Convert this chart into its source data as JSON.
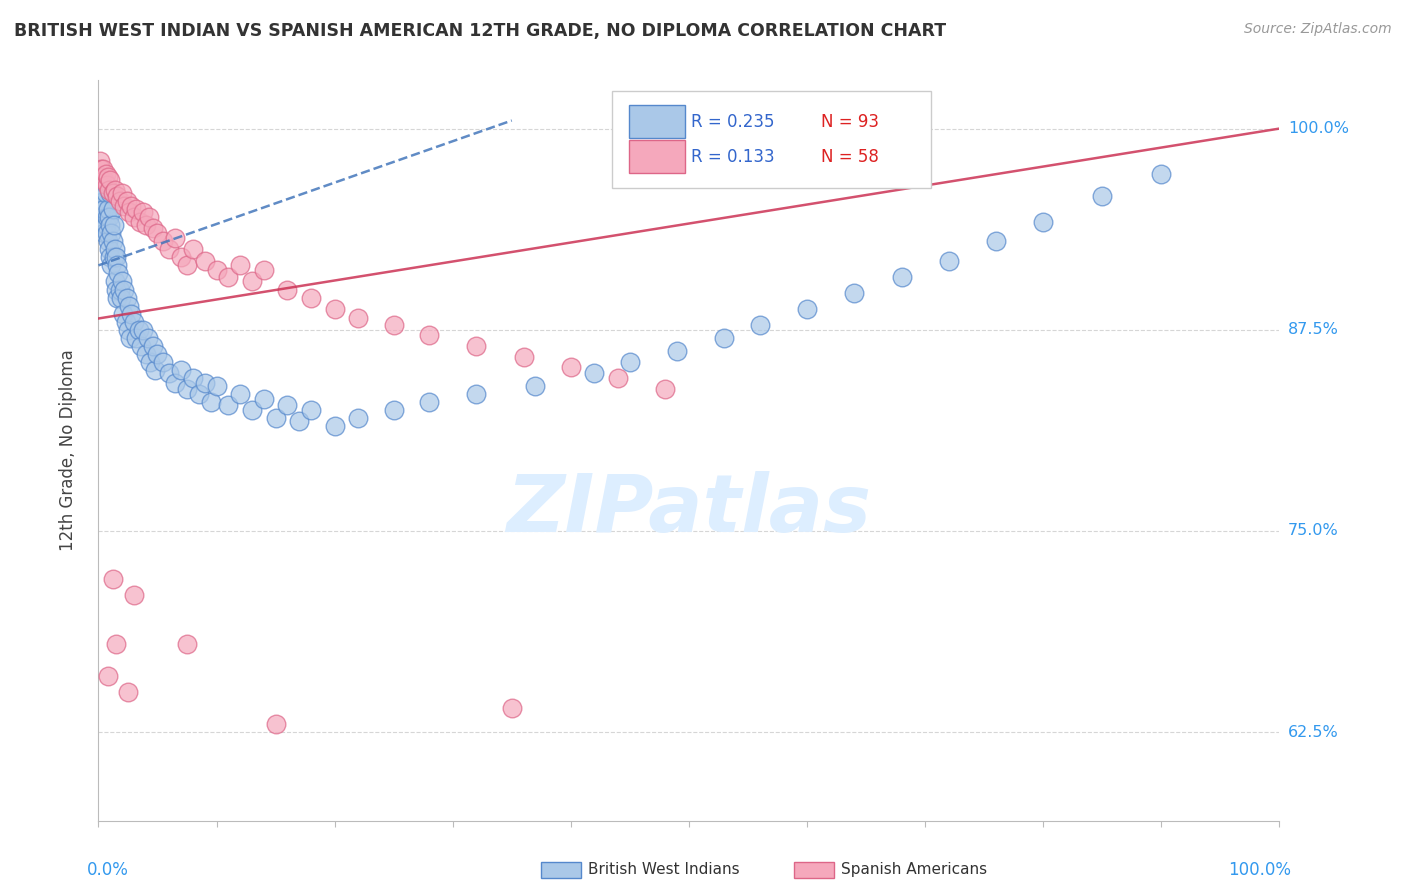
{
  "title": "BRITISH WEST INDIAN VS SPANISH AMERICAN 12TH GRADE, NO DIPLOMA CORRELATION CHART",
  "source": "Source: ZipAtlas.com",
  "ylabel": "12th Grade, No Diploma",
  "yticks_labels": [
    "100.0%",
    "87.5%",
    "75.0%",
    "62.5%"
  ],
  "ytick_vals": [
    1.0,
    0.875,
    0.75,
    0.625
  ],
  "xlim": [
    0.0,
    1.0
  ],
  "ylim": [
    0.57,
    1.03
  ],
  "xtick_positions": [
    0.0,
    0.1,
    0.2,
    0.3,
    0.4,
    0.5,
    0.6,
    0.7,
    0.8,
    0.9,
    1.0
  ],
  "r_bwi": 0.235,
  "n_bwi": 93,
  "r_spa": 0.133,
  "n_spa": 58,
  "bwi_color": "#aac8e8",
  "spa_color": "#f5a8bc",
  "bwi_edge": "#5588cc",
  "spa_edge": "#dd6688",
  "trend_bwi_color": "#4477bb",
  "trend_spa_color": "#cc3355",
  "title_color": "#333333",
  "source_color": "#999999",
  "legend_r_color": "#3366cc",
  "legend_n_color": "#dd2222",
  "watermark_color": "#ddeeff",
  "grid_color": "#cccccc",
  "bwi_points_x": [
    0.001,
    0.002,
    0.002,
    0.003,
    0.003,
    0.004,
    0.004,
    0.005,
    0.005,
    0.005,
    0.006,
    0.006,
    0.007,
    0.007,
    0.008,
    0.008,
    0.009,
    0.009,
    0.01,
    0.01,
    0.01,
    0.011,
    0.011,
    0.012,
    0.012,
    0.013,
    0.013,
    0.014,
    0.014,
    0.015,
    0.015,
    0.016,
    0.016,
    0.017,
    0.018,
    0.019,
    0.02,
    0.021,
    0.022,
    0.023,
    0.024,
    0.025,
    0.026,
    0.027,
    0.028,
    0.03,
    0.032,
    0.034,
    0.036,
    0.038,
    0.04,
    0.042,
    0.044,
    0.046,
    0.048,
    0.05,
    0.055,
    0.06,
    0.065,
    0.07,
    0.075,
    0.08,
    0.085,
    0.09,
    0.095,
    0.1,
    0.11,
    0.12,
    0.13,
    0.14,
    0.15,
    0.16,
    0.17,
    0.18,
    0.2,
    0.22,
    0.25,
    0.28,
    0.32,
    0.37,
    0.42,
    0.45,
    0.49,
    0.53,
    0.56,
    0.6,
    0.64,
    0.68,
    0.72,
    0.76,
    0.8,
    0.85,
    0.9
  ],
  "bwi_points_y": [
    0.96,
    0.97,
    0.95,
    0.965,
    0.945,
    0.96,
    0.94,
    0.955,
    0.935,
    0.95,
    0.94,
    0.96,
    0.945,
    0.935,
    0.95,
    0.93,
    0.945,
    0.925,
    0.94,
    0.96,
    0.92,
    0.935,
    0.915,
    0.93,
    0.95,
    0.92,
    0.94,
    0.925,
    0.905,
    0.92,
    0.9,
    0.915,
    0.895,
    0.91,
    0.9,
    0.895,
    0.905,
    0.885,
    0.9,
    0.88,
    0.895,
    0.875,
    0.89,
    0.87,
    0.885,
    0.88,
    0.87,
    0.875,
    0.865,
    0.875,
    0.86,
    0.87,
    0.855,
    0.865,
    0.85,
    0.86,
    0.855,
    0.848,
    0.842,
    0.85,
    0.838,
    0.845,
    0.835,
    0.842,
    0.83,
    0.84,
    0.828,
    0.835,
    0.825,
    0.832,
    0.82,
    0.828,
    0.818,
    0.825,
    0.815,
    0.82,
    0.825,
    0.83,
    0.835,
    0.84,
    0.848,
    0.855,
    0.862,
    0.87,
    0.878,
    0.888,
    0.898,
    0.908,
    0.918,
    0.93,
    0.942,
    0.958,
    0.972
  ],
  "spa_points_x": [
    0.001,
    0.002,
    0.003,
    0.004,
    0.005,
    0.006,
    0.007,
    0.008,
    0.009,
    0.01,
    0.012,
    0.014,
    0.016,
    0.018,
    0.02,
    0.022,
    0.024,
    0.026,
    0.028,
    0.03,
    0.032,
    0.035,
    0.038,
    0.04,
    0.043,
    0.046,
    0.05,
    0.055,
    0.06,
    0.065,
    0.07,
    0.075,
    0.08,
    0.09,
    0.1,
    0.11,
    0.12,
    0.13,
    0.14,
    0.16,
    0.18,
    0.2,
    0.22,
    0.25,
    0.28,
    0.32,
    0.36,
    0.4,
    0.44,
    0.48,
    0.03,
    0.015,
    0.025,
    0.35,
    0.15,
    0.075,
    0.008,
    0.012
  ],
  "spa_points_y": [
    0.98,
    0.975,
    0.97,
    0.975,
    0.968,
    0.972,
    0.965,
    0.97,
    0.962,
    0.968,
    0.96,
    0.962,
    0.958,
    0.955,
    0.96,
    0.952,
    0.955,
    0.948,
    0.952,
    0.945,
    0.95,
    0.942,
    0.948,
    0.94,
    0.945,
    0.938,
    0.935,
    0.93,
    0.925,
    0.932,
    0.92,
    0.915,
    0.925,
    0.918,
    0.912,
    0.908,
    0.915,
    0.905,
    0.912,
    0.9,
    0.895,
    0.888,
    0.882,
    0.878,
    0.872,
    0.865,
    0.858,
    0.852,
    0.845,
    0.838,
    0.71,
    0.68,
    0.65,
    0.64,
    0.63,
    0.68,
    0.66,
    0.72
  ]
}
